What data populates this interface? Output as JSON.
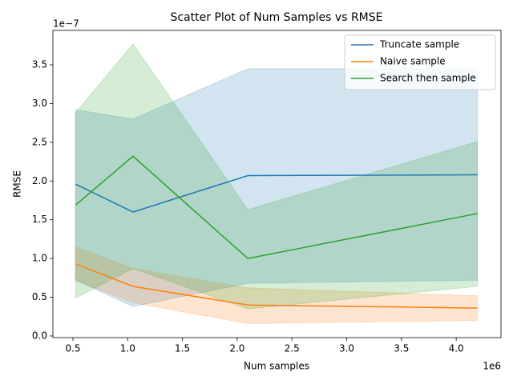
{
  "chart_data": {
    "type": "line",
    "title": "Scatter Plot of Num Samples vs RMSE",
    "xlabel": "Num samples",
    "ylabel": "RMSE",
    "x_offset_label": "1e6",
    "y_offset_label": "1e−7",
    "x": [
      0.524288,
      1.048576,
      2.097152,
      4.194304
    ],
    "series": [
      {
        "name": "Truncate sample",
        "color": "#1f77b4",
        "values": [
          1.96,
          1.6,
          2.07,
          2.08
        ],
        "lower": [
          0.72,
          0.38,
          0.68,
          0.72
        ],
        "upper": [
          2.92,
          2.8,
          3.45,
          3.45
        ]
      },
      {
        "name": "Naive sample",
        "color": "#ff7f0e",
        "values": [
          0.93,
          0.64,
          0.4,
          0.36
        ],
        "lower": [
          0.72,
          0.43,
          0.16,
          0.2
        ],
        "upper": [
          1.15,
          0.87,
          0.62,
          0.52
        ]
      },
      {
        "name": "Search then sample",
        "color": "#2ca02c",
        "values": [
          1.69,
          2.32,
          1.0,
          1.58
        ],
        "lower": [
          0.49,
          0.87,
          0.35,
          0.64
        ],
        "upper": [
          2.88,
          3.77,
          1.63,
          2.51
        ]
      }
    ],
    "band_opacity": 0.2,
    "xlim": [
      0.317,
      4.409
    ],
    "ylim": [
      -0.021,
      3.944
    ],
    "xticks": [
      0.5,
      {
        "value": 1,
        "label": "1.0"
      },
      1.5,
      {
        "value": 2,
        "label": "2.0"
      },
      2.5,
      {
        "value": 3,
        "label": "3.0"
      },
      3.5,
      {
        "value": 4,
        "label": "4.0"
      }
    ],
    "yticks": [
      {
        "value": 0,
        "label": "0.0"
      },
      0.5,
      {
        "value": 1,
        "label": "1.0"
      },
      1.5,
      {
        "value": 2,
        "label": "2.0"
      },
      2.5,
      {
        "value": 3,
        "label": "3.0"
      },
      3.5
    ],
    "legend": "upper right",
    "grid": false
  }
}
